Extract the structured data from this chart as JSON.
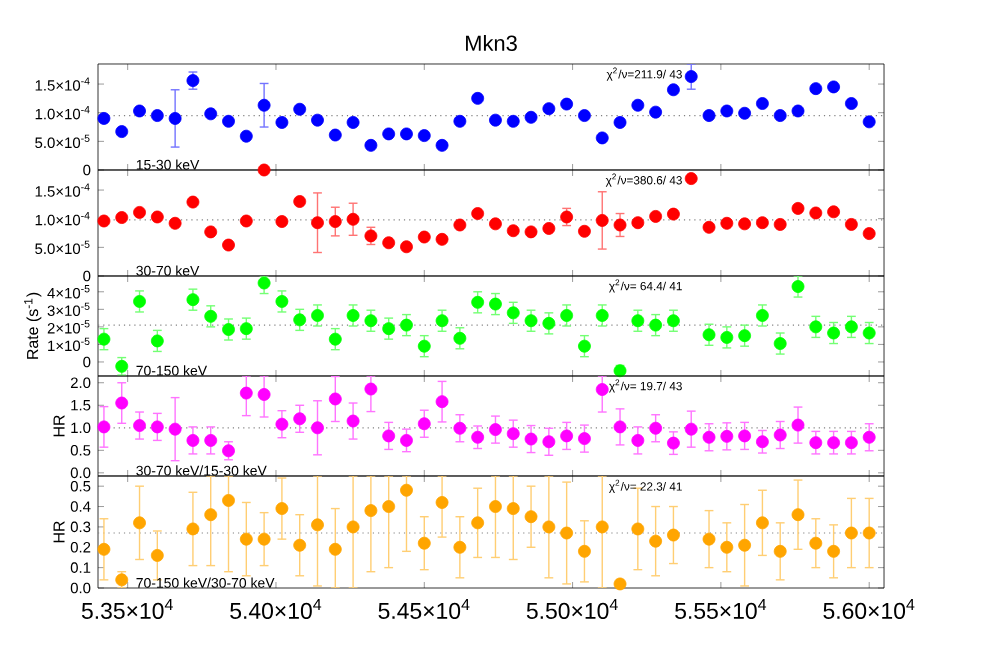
{
  "chart_data": [
    {
      "type": "scatter",
      "title": "Mkn3",
      "color": "#0000ff",
      "marker": "circle",
      "tick_labels": "y",
      "x": [
        53420,
        53480,
        53540,
        53600,
        53660,
        53720,
        53780,
        53840,
        53900,
        53960,
        54020,
        54080,
        54140,
        54200,
        54260,
        54320,
        54380,
        54440,
        54500,
        54560,
        54620,
        54680,
        54740,
        54800,
        54860,
        54920,
        54980,
        55040,
        55100,
        55160,
        55220,
        55280,
        55340,
        55400,
        55460,
        55520,
        55580,
        55640,
        55700,
        55760,
        55820,
        55880,
        55940,
        56000
      ],
      "values": [
        9e-05,
        6.7e-05,
        0.000103,
        9.5e-05,
        9e-05,
        0.000156,
        9.8e-05,
        8.5e-05,
        5.9e-05,
        0.000113,
        8.3e-05,
        0.000106,
        8.7e-05,
        6.1e-05,
        8.3e-05,
        4.3e-05,
        6.3e-05,
        6.3e-05,
        6e-05,
        4.3e-05,
        8.5e-05,
        0.000125,
        8.7e-05,
        8.5e-05,
        9.2e-05,
        0.000107,
        0.000115,
        9.5e-05,
        5.6e-05,
        8.3e-05,
        0.000113,
        0.000101,
        0.00014,
        0.000163,
        9.5e-05,
        0.000103,
        9.9e-05,
        0.000116,
        9.5e-05,
        0.000103,
        0.000142,
        0.000145,
        0.000116,
        8.4e-05
      ],
      "errors": [
        null,
        null,
        null,
        null,
        5e-05,
        1.5e-05,
        null,
        null,
        null,
        3.8e-05,
        null,
        null,
        null,
        null,
        null,
        null,
        null,
        null,
        null,
        null,
        null,
        null,
        null,
        null,
        null,
        null,
        null,
        null,
        null,
        null,
        null,
        null,
        null,
        2.2e-05,
        null,
        null,
        null,
        null,
        null,
        null,
        null,
        null,
        null,
        null
      ],
      "xlim": [
        53400,
        56050
      ],
      "xticks": [
        {
          "value": 53500,
          "label": null
        },
        {
          "value": 54000,
          "label": null
        },
        {
          "value": 54500,
          "label": null
        },
        {
          "value": 55000,
          "label": null
        },
        {
          "value": 55500,
          "label": null
        },
        {
          "value": 56000,
          "label": null
        }
      ],
      "ylim": [
        0,
        0.000185
      ],
      "yticks": [
        0,
        {
          "value": 5e-05,
          "label": "5.0×10$^{-5}$"
        },
        {
          "value": 0.0001,
          "label": "1.0×10$^{-4}$"
        },
        {
          "value": 0.00015,
          "label": "1.5×10$^{-4}$"
        }
      ],
      "ref_lines": [
        {
          "axis": "y",
          "value": 9.5e-05,
          "line_style": "dotted"
        }
      ],
      "annotations": [
        "15-30 keV",
        "χ$^{2}$/ν=211.9/ 43"
      ]
    },
    {
      "type": "scatter",
      "color": "#ff0000",
      "marker": "circle",
      "tick_labels": "y",
      "x": [
        53420,
        53480,
        53540,
        53600,
        53660,
        53720,
        53780,
        53840,
        53900,
        53960,
        54020,
        54080,
        54140,
        54200,
        54260,
        54320,
        54380,
        54440,
        54500,
        54560,
        54620,
        54680,
        54740,
        54800,
        54860,
        54920,
        54980,
        55040,
        55100,
        55160,
        55220,
        55280,
        55340,
        55400,
        55460,
        55520,
        55580,
        55640,
        55700,
        55760,
        55820,
        55880,
        55940,
        56000
      ],
      "values": [
        9.6e-05,
        0.000102,
        0.000111,
        0.000103,
        9.2e-05,
        0.000129,
        7.7e-05,
        5.4e-05,
        9.6e-05,
        0.000185,
        9.5e-05,
        0.00013,
        9.3e-05,
        9.5e-05,
        9.9e-05,
        7e-05,
        5.8e-05,
        5.1e-05,
        6.8e-05,
        6.4e-05,
        8.9e-05,
        0.000109,
        9.1e-05,
        7.9e-05,
        7.7e-05,
        8.3e-05,
        0.000103,
        7.8e-05,
        9.7e-05,
        8.9e-05,
        9.3e-05,
        0.000104,
        0.000108,
        0.00017,
        8.5e-05,
        9.2e-05,
        9.1e-05,
        9.3e-05,
        9e-05,
        0.000118,
        0.00011,
        0.000112,
        9e-05,
        7.4e-05
      ],
      "errors": [
        null,
        null,
        null,
        null,
        null,
        null,
        null,
        null,
        null,
        null,
        null,
        null,
        5.2e-05,
        2.5e-05,
        2.8e-05,
        1.5e-05,
        null,
        null,
        null,
        null,
        null,
        null,
        null,
        null,
        null,
        null,
        1.5e-05,
        null,
        5e-05,
        2e-05,
        null,
        null,
        null,
        null,
        null,
        null,
        null,
        null,
        null,
        null,
        null,
        null,
        null,
        null
      ],
      "xlim": [
        53400,
        56050
      ],
      "xticks": [
        {
          "value": 53500,
          "label": null
        },
        {
          "value": 54000,
          "label": null
        },
        {
          "value": 54500,
          "label": null
        },
        {
          "value": 55000,
          "label": null
        },
        {
          "value": 55500,
          "label": null
        },
        {
          "value": 56000,
          "label": null
        }
      ],
      "ylim": [
        0,
        0.000185
      ],
      "yticks": [
        0,
        {
          "value": 5e-05,
          "label": "5.0×10$^{-5}$"
        },
        {
          "value": 0.0001,
          "label": "1.0×10$^{-4}$"
        },
        {
          "value": 0.00015,
          "label": "1.5×10$^{-4}$"
        }
      ],
      "ref_lines": [
        {
          "axis": "y",
          "value": 9.8e-05,
          "line_style": "dotted"
        }
      ],
      "annotations": [
        "30-70 keV",
        "χ$^{2}$/ν=380.6/ 43"
      ]
    },
    {
      "type": "scatter",
      "color": "#00ff00",
      "marker": "circle",
      "tick_labels": "y",
      "ylabel": "Rate (s$^{-1}$)",
      "x": [
        53420,
        53480,
        53540,
        53600,
        53720,
        53780,
        53840,
        53900,
        53960,
        54020,
        54080,
        54140,
        54200,
        54260,
        54320,
        54380,
        54440,
        54500,
        54560,
        54620,
        54680,
        54740,
        54800,
        54860,
        54920,
        54980,
        55040,
        55100,
        55160,
        55220,
        55280,
        55340,
        55460,
        55520,
        55580,
        55640,
        55700,
        55760,
        55820,
        55880,
        55940,
        56000
      ],
      "values": [
        1.3e-05,
        -2.5e-06,
        3.45e-05,
        1.2e-05,
        3.55e-05,
        2.6e-05,
        1.85e-05,
        1.9e-05,
        4.5e-05,
        3.45e-05,
        2.4e-05,
        2.65e-05,
        1.3e-05,
        2.65e-05,
        2.35e-05,
        1.9e-05,
        2.1e-05,
        9e-06,
        2.35e-05,
        1.35e-05,
        3.4e-05,
        3.3e-05,
        2.8e-05,
        2.35e-05,
        2.2e-05,
        2.65e-05,
        9e-06,
        2.65e-05,
        -5e-06,
        2.35e-05,
        2.1e-05,
        2.35e-05,
        1.55e-05,
        1.4e-05,
        1.5e-05,
        2.65e-05,
        1.05e-05,
        4.3e-05,
        2e-05,
        1.65e-05,
        2e-05,
        1.65e-05
      ],
      "errors": [
        6e-06,
        5e-06,
        6e-06,
        6e-06,
        6e-06,
        6e-06,
        6e-06,
        6e-06,
        [
          3.9e-05,
          4.9e-05
        ],
        6e-06,
        6e-06,
        6e-06,
        6e-06,
        6e-06,
        6e-06,
        6e-06,
        6e-06,
        6e-06,
        6e-06,
        6e-06,
        6e-06,
        6e-06,
        6e-06,
        6e-06,
        6e-06,
        6e-06,
        6e-06,
        6e-06,
        3e-06,
        6e-06,
        6e-06,
        6e-06,
        6e-06,
        6e-06,
        6e-06,
        6e-06,
        6e-06,
        6e-06,
        6e-06,
        6e-06,
        6e-06,
        6e-06
      ],
      "xlim": [
        53400,
        56050
      ],
      "xticks": [
        {
          "value": 53500,
          "label": null
        },
        {
          "value": 54000,
          "label": null
        },
        {
          "value": 54500,
          "label": null
        },
        {
          "value": 55000,
          "label": null
        },
        {
          "value": 55500,
          "label": null
        },
        {
          "value": 56000,
          "label": null
        }
      ],
      "ylim": [
        -8e-06,
        4.9e-05
      ],
      "yticks": [
        0,
        {
          "value": 1e-05,
          "label": "1×10$^{-5}$"
        },
        {
          "value": 2e-05,
          "label": "2×10$^{-5}$"
        },
        {
          "value": 3e-05,
          "label": "3×10$^{-5}$"
        },
        {
          "value": 4e-05,
          "label": "4×10$^{-5}$"
        }
      ],
      "ref_lines": [
        {
          "axis": "y",
          "value": 2.1e-05,
          "line_style": "dotted"
        }
      ],
      "annotations": [
        "70-150 keV",
        "χ$^{2}$/ν= 64.4/ 41"
      ]
    },
    {
      "type": "scatter",
      "color": "#ff00ff",
      "marker": "circle",
      "tick_labels": "y",
      "ylabel": "HR",
      "x": [
        53420,
        53480,
        53540,
        53600,
        53660,
        53720,
        53780,
        53840,
        53900,
        53960,
        54020,
        54080,
        54140,
        54200,
        54260,
        54320,
        54380,
        54440,
        54500,
        54560,
        54620,
        54680,
        54740,
        54800,
        54860,
        54920,
        54980,
        55040,
        55100,
        55160,
        55220,
        55280,
        55340,
        55400,
        55460,
        55520,
        55580,
        55640,
        55700,
        55760,
        55820,
        55880,
        55940,
        56000
      ],
      "values": [
        1.02,
        1.55,
        1.05,
        1.02,
        0.97,
        0.72,
        0.72,
        0.49,
        1.77,
        1.74,
        1.08,
        1.2,
        1.0,
        1.64,
        1.15,
        1.86,
        0.82,
        0.72,
        1.09,
        1.58,
        0.99,
        0.79,
        0.96,
        0.87,
        0.75,
        0.69,
        0.82,
        0.76,
        1.85,
        1.02,
        0.72,
        0.99,
        0.66,
        0.97,
        0.79,
        0.81,
        0.82,
        0.69,
        0.84,
        1.06,
        0.67,
        0.67,
        0.67,
        0.79
      ],
      "errors": [
        0.45,
        0.45,
        0.3,
        0.3,
        0.7,
        0.3,
        0.3,
        0.2,
        [
          1.27,
          2.15
        ],
        [
          1.24,
          2.15
        ],
        0.3,
        0.3,
        0.6,
        0.5,
        0.4,
        [
          1.36,
          2.15
        ],
        0.3,
        0.25,
        0.3,
        0.45,
        0.3,
        0.25,
        0.3,
        0.3,
        0.3,
        0.3,
        0.3,
        0.3,
        [
          1.35,
          2.15
        ],
        0.4,
        0.3,
        0.3,
        0.25,
        0.4,
        0.3,
        0.3,
        0.3,
        0.25,
        0.3,
        0.4,
        0.25,
        0.25,
        0.25,
        0.3
      ],
      "xlim": [
        53400,
        56050
      ],
      "xticks": [
        {
          "value": 53500,
          "label": null
        },
        {
          "value": 54000,
          "label": null
        },
        {
          "value": 54500,
          "label": null
        },
        {
          "value": 55000,
          "label": null
        },
        {
          "value": 55500,
          "label": null
        },
        {
          "value": 56000,
          "label": null
        }
      ],
      "ylim": [
        -0.07,
        2.15
      ],
      "yticks": [
        {
          "value": 0,
          "label": "0.0"
        },
        {
          "value": 0.5,
          "label": "0.5"
        },
        {
          "value": 1,
          "label": "1.0"
        },
        {
          "value": 1.5,
          "label": "1.5"
        },
        {
          "value": 2,
          "label": "2.0"
        }
      ],
      "ref_lines": [
        {
          "axis": "y",
          "value": 1.0,
          "line_style": "dotted"
        }
      ],
      "annotations": [
        "30-70 keV/15-30 keV",
        "χ$^{2}$/ν= 19.7/ 43"
      ]
    },
    {
      "type": "scatter",
      "color": "#ffa500",
      "marker": "circle",
      "ylabel": "HR",
      "x": [
        53420,
        53480,
        53540,
        53600,
        53720,
        53780,
        53840,
        53900,
        53960,
        54020,
        54080,
        54140,
        54200,
        54260,
        54320,
        54380,
        54440,
        54500,
        54560,
        54620,
        54680,
        54740,
        54800,
        54860,
        54920,
        54980,
        55040,
        55100,
        55160,
        55220,
        55280,
        55340,
        55460,
        55520,
        55580,
        55640,
        55700,
        55760,
        55820,
        55880,
        55940,
        56000
      ],
      "values": [
        0.19,
        0.04,
        0.32,
        0.16,
        0.29,
        0.36,
        0.43,
        0.24,
        0.24,
        0.39,
        0.21,
        0.31,
        0.19,
        0.3,
        0.38,
        0.4,
        0.48,
        0.22,
        0.42,
        0.2,
        0.32,
        0.4,
        0.39,
        0.35,
        0.3,
        0.27,
        0.18,
        0.3,
        0.02,
        0.29,
        0.23,
        0.26,
        0.24,
        0.2,
        0.21,
        0.32,
        0.18,
        0.36,
        0.22,
        0.18,
        0.27,
        0.27
      ],
      "errors": [
        0.15,
        0.04,
        0.18,
        0.12,
        0.18,
        [
          0.11,
          0.55
        ],
        [
          0.08,
          0.55
        ],
        0.18,
        0.13,
        0.15,
        0.15,
        [
          0.01,
          0.55
        ],
        [
          0,
          0.39
        ],
        [
          0,
          0.55
        ],
        [
          0.08,
          0.55
        ],
        [
          0.1,
          0.55
        ],
        [
          0.18,
          0.55
        ],
        0.13,
        [
          0.25,
          0.55
        ],
        0.15,
        0.17,
        [
          0.15,
          0.55
        ],
        [
          0.14,
          0.55
        ],
        0.15,
        [
          0.05,
          0.55
        ],
        0.25,
        0.15,
        [
          0,
          0.55
        ],
        0.02,
        0.2,
        0.17,
        0.14,
        0.14,
        0.12,
        0.2,
        0.16,
        0.14,
        0.17,
        0.12,
        0.13,
        0.17,
        0.17
      ],
      "xlim": [
        53400,
        56050
      ],
      "xticks": [
        {
          "value": 53500,
          "label": "5.35×10$^{4}$"
        },
        {
          "value": 54000,
          "label": "5.40×10$^{4}$"
        },
        {
          "value": 54500,
          "label": "5.45×10$^{4}$"
        },
        {
          "value": 55000,
          "label": "5.50×10$^{4}$"
        },
        {
          "value": 55500,
          "label": "5.55×10$^{4}$"
        },
        {
          "value": 56000,
          "label": "5.60×10$^{4}$"
        }
      ],
      "ylim": [
        0,
        0.55
      ],
      "yticks": [
        {
          "value": 0,
          "label": "0.0"
        },
        {
          "value": 0.1,
          "label": "0.1"
        },
        {
          "value": 0.2,
          "label": "0.2"
        },
        {
          "value": 0.3,
          "label": "0.3"
        },
        {
          "value": 0.4,
          "label": "0.4"
        },
        {
          "value": 0.5,
          "label": "0.5"
        }
      ],
      "ref_lines": [
        {
          "axis": "y",
          "value": 0.27,
          "line_style": "dotted"
        }
      ],
      "annotations": [
        "70-150 keV/30-70 keV",
        "χ$^{2}$/ν= 22.3/ 41"
      ]
    }
  ]
}
